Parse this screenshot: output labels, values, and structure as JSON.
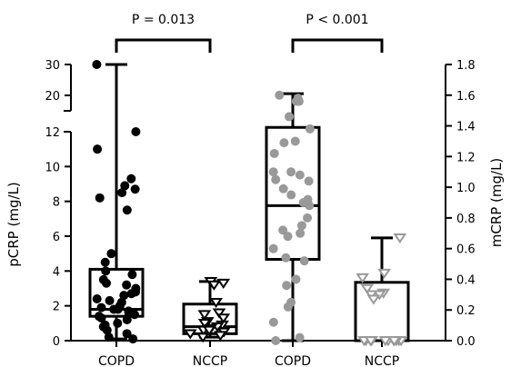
{
  "chart_data": {
    "type": "box",
    "categories": [
      "COPD",
      "NCCP",
      "COPD",
      "NCCP"
    ],
    "left_axis": {
      "label": "pCRP (mg/L)",
      "lower_segment": {
        "ylim": [
          0,
          12
        ],
        "ticks": [
          "0",
          "2",
          "4",
          "6",
          "8",
          "10",
          "12"
        ]
      },
      "upper_segment": {
        "ylim": [
          15,
          30
        ],
        "ticks": [
          "20",
          "30"
        ]
      }
    },
    "right_axis": {
      "label": "mCRP (mg/L)",
      "ylim": [
        0,
        1.8
      ],
      "ticks": [
        "0.0",
        "0.2",
        "0.4",
        "0.6",
        "0.8",
        "1.0",
        "1.2",
        "1.4",
        "1.6",
        "1.8"
      ]
    },
    "comparisons": [
      {
        "label": "P = 0.013",
        "between": [
          0,
          1
        ]
      },
      {
        "label": "P < 0.001",
        "between": [
          2,
          3
        ]
      }
    ],
    "series": [
      {
        "group": "COPD",
        "axis": "left",
        "marker": "circle",
        "color": "#000000",
        "min": 0.1,
        "q1": 1.4,
        "median": 1.8,
        "q3": 4.1,
        "max": 30,
        "points": [
          30,
          12,
          11,
          9.3,
          8.9,
          8.7,
          8.5,
          8.2,
          7.5,
          5.0,
          4.5,
          4.0,
          3.8,
          3.5,
          3.3,
          3.2,
          3.0,
          2.8,
          2.7,
          2.6,
          2.4,
          2.3,
          2.2,
          2.0,
          1.9,
          1.8,
          1.8,
          1.7,
          1.6,
          1.5,
          1.4,
          1.3,
          1.2,
          1.0,
          0.9,
          0.8,
          0.6,
          0.4,
          0.2,
          0.1
        ]
      },
      {
        "group": "NCCP",
        "axis": "left",
        "marker": "triangle-down",
        "color": "#000000",
        "min": 0.2,
        "q1": 0.4,
        "median": 0.8,
        "q3": 2.1,
        "max": 3.4,
        "points": [
          3.4,
          3.3,
          3.2,
          2.2,
          1.6,
          1.5,
          1.3,
          1.1,
          1.0,
          0.9,
          0.8,
          0.7,
          0.6,
          0.6,
          0.5,
          0.4,
          0.3,
          0.2
        ]
      },
      {
        "group": "COPD",
        "axis": "right",
        "marker": "circle",
        "color": "#999999",
        "min": 0.0,
        "q1": 0.53,
        "median": 0.88,
        "q3": 1.39,
        "max": 1.61,
        "points": [
          1.6,
          1.58,
          1.56,
          1.56,
          1.46,
          1.38,
          1.3,
          1.29,
          1.22,
          1.1,
          1.1,
          1.08,
          1.05,
          1.04,
          0.99,
          0.95,
          0.92,
          0.9,
          0.88,
          0.8,
          0.75,
          0.72,
          0.7,
          0.68,
          0.6,
          0.54,
          0.52,
          0.4,
          0.36,
          0.25,
          0.22,
          0.12,
          0.02,
          0.0
        ]
      },
      {
        "group": "NCCP",
        "axis": "right",
        "marker": "triangle-down",
        "color": "#999999",
        "min": 0.0,
        "q1": 0.0,
        "median": 0.0,
        "q3": 0.38,
        "max": 0.67,
        "points": [
          0.67,
          0.44,
          0.41,
          0.34,
          0.31,
          0.3,
          0.3,
          0.27,
          0.0,
          0.0,
          0.0,
          0.0,
          0.0,
          0.0,
          0.0,
          0.0,
          0.0,
          0.0,
          0.0,
          0.0
        ]
      }
    ]
  }
}
